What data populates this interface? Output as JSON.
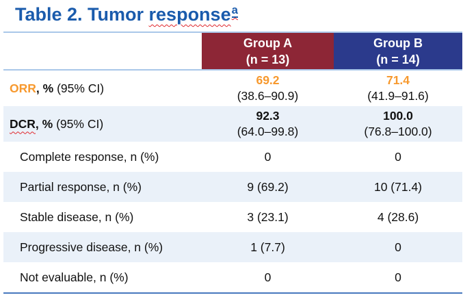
{
  "title": {
    "prefix": "Table 2. Tumor ",
    "underlined_word": "response",
    "superscript": "a"
  },
  "header": {
    "group_a": {
      "name": "Group A",
      "n": "(n = 13)"
    },
    "group_b": {
      "name": "Group B",
      "n": "(n = 14)"
    }
  },
  "rows": {
    "orr": {
      "label_acronym": "ORR",
      "label_bold_suffix": ", %",
      "label_regular": "(95% CI)",
      "a_value": "69.2",
      "a_ci": "(38.6–90.9)",
      "b_value": "71.4",
      "b_ci": "(41.9–91.6)"
    },
    "dcr": {
      "label_acronym": "DCR",
      "label_bold_suffix": ", %",
      "label_regular": "(95% CI)",
      "a_value": "92.3",
      "a_ci": "(64.0–99.8)",
      "b_value": "100.0",
      "b_ci": "(76.8–100.0)"
    },
    "complete_response": {
      "label": "Complete response, n (%)",
      "a": "0",
      "b": "0"
    },
    "partial_response": {
      "label": "Partial response, n (%)",
      "a": "9 (69.2)",
      "b": "10 (71.4)"
    },
    "stable_disease": {
      "label": "Stable disease, n (%)",
      "a": "3 (23.1)",
      "b": "4 (28.6)"
    },
    "progressive_disease": {
      "label": "Progressive disease, n (%)",
      "a": "1 (7.7)",
      "b": "0"
    },
    "not_evaluable": {
      "label": "Not evaluable, n (%)",
      "a": "0",
      "b": "0"
    }
  },
  "colors": {
    "title_blue": "#1A5BAC",
    "group_a_maroon": "#8D2636",
    "group_b_navy": "#2B3A8C",
    "orr_orange": "#F7992E",
    "row_shade_blue": "#EAF1F9",
    "header_border_light_blue": "#A9C7E9",
    "bottom_rule_blue": "#4778BE",
    "spellcheck_red": "#E0262B"
  }
}
